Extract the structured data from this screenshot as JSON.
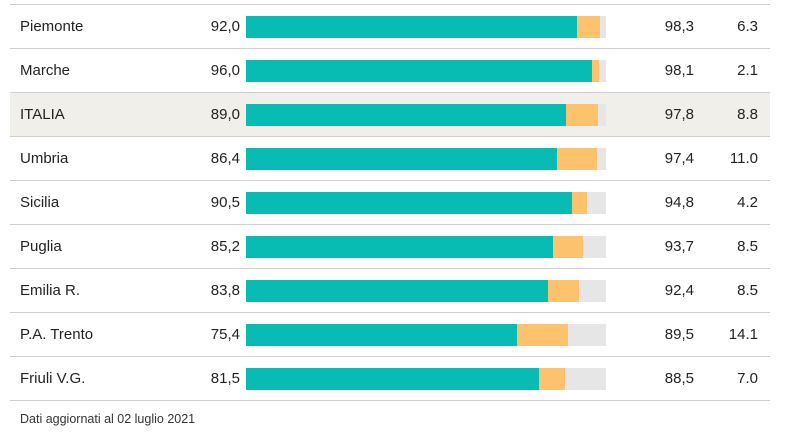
{
  "colors": {
    "primary": "#08bcb4",
    "secondary": "#fdc26d",
    "track": "#e6e6e6",
    "highlight_row": "#f1efe9"
  },
  "chart_data": {
    "type": "bar",
    "stacked": true,
    "orientation": "horizontal",
    "xlim": [
      0,
      100
    ],
    "categories": [
      "Piemonte",
      "Marche",
      "ITALIA",
      "Umbria",
      "Sicilia",
      "Puglia",
      "Emilia R.",
      "P.A. Trento",
      "Friuli V.G."
    ],
    "highlight": "ITALIA",
    "series": [
      {
        "values": [
          92.0,
          96.0,
          89.0,
          86.4,
          90.5,
          85.2,
          83.8,
          75.4,
          81.5
        ]
      },
      {
        "values": [
          6.3,
          2.1,
          8.8,
          11.0,
          4.3,
          8.5,
          8.6,
          14.1,
          7.0
        ]
      }
    ],
    "rows": [
      {
        "name": "Piemonte",
        "v1": "92,0",
        "v2": "98,3",
        "v3": "6.3"
      },
      {
        "name": "Marche",
        "v1": "96,0",
        "v2": "98,1",
        "v3": "2.1"
      },
      {
        "name": "ITALIA",
        "v1": "89,0",
        "v2": "97,8",
        "v3": "8.8"
      },
      {
        "name": "Umbria",
        "v1": "86,4",
        "v2": "97,4",
        "v3": "11.0"
      },
      {
        "name": "Sicilia",
        "v1": "90,5",
        "v2": "94,8",
        "v3": "4.2"
      },
      {
        "name": "Puglia",
        "v1": "85,2",
        "v2": "93,7",
        "v3": "8.5"
      },
      {
        "name": "Emilia R.",
        "v1": "83,8",
        "v2": "92,4",
        "v3": "8.5"
      },
      {
        "name": "P.A. Trento",
        "v1": "75,4",
        "v2": "89,5",
        "v3": "14.1"
      },
      {
        "name": "Friuli V.G.",
        "v1": "81,5",
        "v2": "88,5",
        "v3": "7.0"
      }
    ]
  },
  "footnote": "Dati aggiornati al 02 luglio 2021"
}
